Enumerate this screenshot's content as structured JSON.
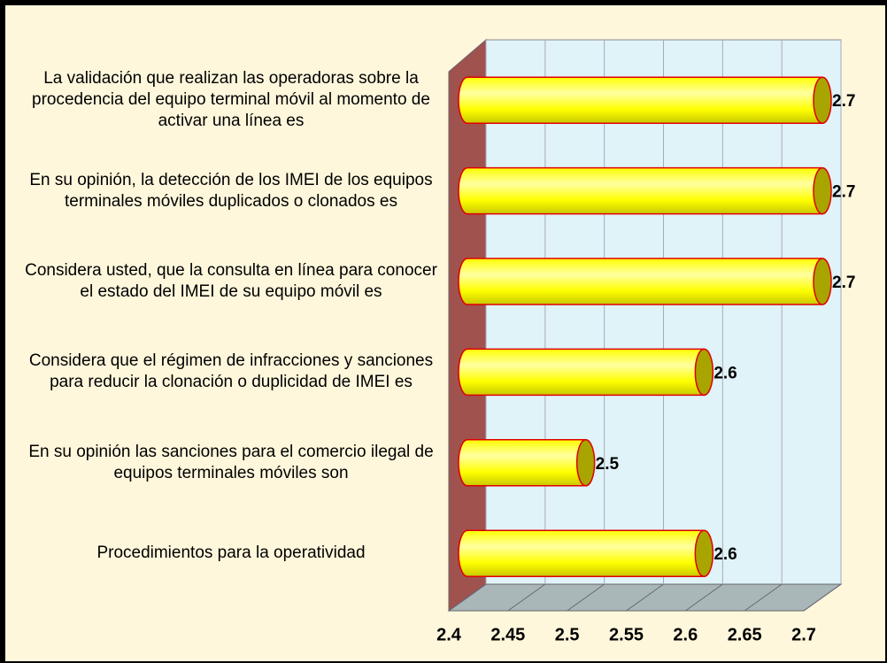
{
  "chart_data": {
    "type": "bar",
    "categories": [
      "La validación que realizan las operadoras sobre la procedencia del equipo terminal móvil al momento de activar una línea es",
      "En su opinión, la detección de los IMEI de los equipos terminales móviles duplicados o clonados es",
      "Considera usted, que la consulta en línea para conocer el estado del IMEI de su equipo móvil es",
      "Considera que el régimen de infracciones y sanciones para reducir la clonación o duplicidad de IMEI es",
      "En su opinión las sanciones para el comercio ilegal de equipos terminales móviles son",
      "Procedimientos para la operatividad"
    ],
    "values": [
      2.7,
      2.7,
      2.7,
      2.6,
      2.5,
      2.6
    ],
    "color": "#ffff00",
    "xlim": [
      2.4,
      2.7
    ],
    "xticks": [
      2.4,
      2.45,
      2.5,
      2.55,
      2.6,
      2.65,
      2.7
    ],
    "grid": true
  }
}
